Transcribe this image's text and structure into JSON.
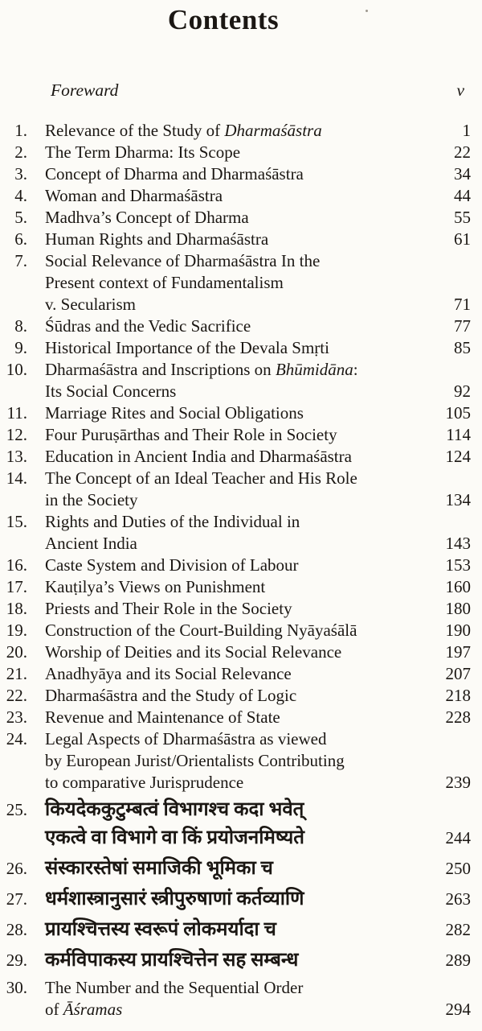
{
  "document": {
    "title": "Contents",
    "foreword": {
      "label": "Foreward",
      "page": "v"
    }
  },
  "entries": [
    {
      "num": "1.",
      "page": "1",
      "lines": [
        [
          {
            "t": "Relevance of the Study of "
          },
          {
            "t": "Dharmaśāstra",
            "i": true
          }
        ]
      ]
    },
    {
      "num": "2.",
      "page": "22",
      "lines": [
        [
          {
            "t": "The Term Dharma: Its Scope"
          }
        ]
      ]
    },
    {
      "num": "3.",
      "page": "34",
      "lines": [
        [
          {
            "t": "Concept of Dharma and Dharmaśāstra"
          }
        ]
      ]
    },
    {
      "num": "4.",
      "page": "44",
      "lines": [
        [
          {
            "t": "Woman and Dharmaśāstra"
          }
        ]
      ]
    },
    {
      "num": "5.",
      "page": "55",
      "lines": [
        [
          {
            "t": "Madhva’s Concept of Dharma"
          }
        ]
      ]
    },
    {
      "num": "6.",
      "page": "61",
      "lines": [
        [
          {
            "t": "Human Rights and Dharmaśāstra"
          }
        ]
      ]
    },
    {
      "num": "7.",
      "page": "71",
      "lines": [
        [
          {
            "t": "Social Relevance of Dharmaśāstra In the"
          }
        ],
        [
          {
            "t": "Present context of Fundamentalism"
          }
        ],
        [
          {
            "t": "v. Secularism"
          }
        ]
      ]
    },
    {
      "num": "8.",
      "page": "77",
      "lines": [
        [
          {
            "t": "Śūdras and the Vedic Sacrifice"
          }
        ]
      ]
    },
    {
      "num": "9.",
      "page": "85",
      "lines": [
        [
          {
            "t": "Historical Importance of the Devala Smṛti"
          }
        ]
      ]
    },
    {
      "num": "10.",
      "page": "92",
      "lines": [
        [
          {
            "t": "Dharmaśāstra and Inscriptions on "
          },
          {
            "t": "Bhūmidāna",
            "i": true
          },
          {
            "t": ":"
          }
        ],
        [
          {
            "t": "Its Social Concerns"
          }
        ]
      ]
    },
    {
      "num": "11.",
      "page": "105",
      "lines": [
        [
          {
            "t": "Marriage Rites and Social Obligations"
          }
        ]
      ]
    },
    {
      "num": "12.",
      "page": "114",
      "lines": [
        [
          {
            "t": "Four Puruṣārthas and Their Role in Society"
          }
        ]
      ]
    },
    {
      "num": "13.",
      "page": "124",
      "lines": [
        [
          {
            "t": "Education in Ancient India and Dharmaśāstra"
          }
        ]
      ]
    },
    {
      "num": "14.",
      "page": "134",
      "lines": [
        [
          {
            "t": "The Concept of an Ideal Teacher and His Role"
          }
        ],
        [
          {
            "t": "in the Society"
          }
        ]
      ]
    },
    {
      "num": "15.",
      "page": "143",
      "lines": [
        [
          {
            "t": "Rights and Duties of the Individual in"
          }
        ],
        [
          {
            "t": "Ancient India"
          }
        ]
      ]
    },
    {
      "num": "16.",
      "page": "153",
      "lines": [
        [
          {
            "t": "Caste System and Division of Labour"
          }
        ]
      ]
    },
    {
      "num": "17.",
      "page": "160",
      "lines": [
        [
          {
            "t": "Kauṭilya’s Views on Punishment"
          }
        ]
      ]
    },
    {
      "num": "18.",
      "page": "180",
      "lines": [
        [
          {
            "t": "Priests and Their Role in the Society"
          }
        ]
      ]
    },
    {
      "num": "19.",
      "page": "190",
      "lines": [
        [
          {
            "t": "Construction of the Court-Building Nyāyaśālā"
          }
        ]
      ]
    },
    {
      "num": "20.",
      "page": "197",
      "lines": [
        [
          {
            "t": "Worship of Deities and its Social Relevance"
          }
        ]
      ]
    },
    {
      "num": "21.",
      "page": "207",
      "lines": [
        [
          {
            "t": "Anadhyāya and its Social Relevance"
          }
        ]
      ]
    },
    {
      "num": "22.",
      "page": "218",
      "lines": [
        [
          {
            "t": "Dharmaśāstra and the Study of Logic"
          }
        ]
      ]
    },
    {
      "num": "23.",
      "page": "228",
      "lines": [
        [
          {
            "t": "Revenue and Maintenance of State"
          }
        ]
      ]
    },
    {
      "num": "24.",
      "page": "239",
      "lines": [
        [
          {
            "t": "Legal Aspects of Dharmaśāstra as viewed"
          }
        ],
        [
          {
            "t": "by European Jurist/Orientalists Contributing"
          }
        ],
        [
          {
            "t": "to comparative Jurisprudence"
          }
        ]
      ]
    },
    {
      "num": "25.",
      "page": "244",
      "script": "deva",
      "lines": [
        [
          {
            "t": "कियदेककुटुम्बत्वं विभागश्च कदा भवेत्"
          }
        ],
        [
          {
            "t": "एकत्वे वा विभागे वा किं प्रयोजनमिष्यते"
          }
        ]
      ]
    },
    {
      "num": "26.",
      "page": "250",
      "script": "deva",
      "lines": [
        [
          {
            "t": "संस्कारस्तेषां समाजिकी भूमिका च"
          }
        ]
      ]
    },
    {
      "num": "27.",
      "page": "263",
      "script": "deva",
      "lines": [
        [
          {
            "t": "धर्मशास्त्रानुसारं स्त्रीपुरुषाणां कर्तव्याणि"
          }
        ]
      ]
    },
    {
      "num": "28.",
      "page": "282",
      "script": "deva",
      "lines": [
        [
          {
            "t": "प्रायश्चित्तस्य स्वरूपं लोकमर्यादा च"
          }
        ]
      ]
    },
    {
      "num": "29.",
      "page": "289",
      "script": "deva",
      "lines": [
        [
          {
            "t": "कर्मविपाकस्य प्रायश्चित्तेन सह सम्बन्ध"
          }
        ]
      ]
    },
    {
      "num": "30.",
      "page": "294",
      "lines": [
        [
          {
            "t": "The Number and the Sequential Order"
          }
        ],
        [
          {
            "t": "of "
          },
          {
            "t": "Āśramas",
            "i": true
          }
        ]
      ]
    }
  ]
}
